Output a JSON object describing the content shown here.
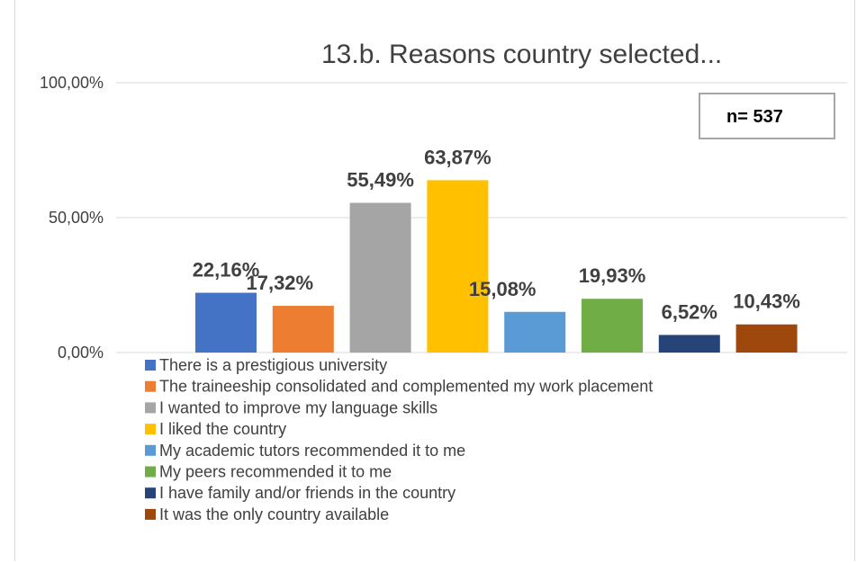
{
  "chart_data": {
    "type": "bar",
    "title": "13.b. Reasons country selected...",
    "annotation": "n= 537",
    "ylim": [
      0,
      100
    ],
    "yticks": [
      {
        "value": 0,
        "label": "0,00%"
      },
      {
        "value": 50,
        "label": "50,00%"
      },
      {
        "value": 100,
        "label": "100,00%"
      }
    ],
    "grid": true,
    "legend_position": "bottom",
    "categories": [
      "There is a prestigious university",
      "The traineeship consolidated and complemented my work placement",
      "I wanted to improve my language skills",
      "I liked the country",
      "My academic tutors recommended it to me",
      "My peers recommended it to me",
      "I have family and/or friends in the country",
      "It was the only country available"
    ],
    "values": [
      22.16,
      17.32,
      55.49,
      63.87,
      15.08,
      19.93,
      6.52,
      10.43
    ],
    "labels": [
      "22,16%",
      "17,32%",
      "55,49%",
      "63,87%",
      "15,08%",
      "19,93%",
      "6,52%",
      "10,43%"
    ],
    "colors": [
      "#4472c4",
      "#ed7d31",
      "#a5a5a5",
      "#ffc000",
      "#5b9bd5",
      "#70ad47",
      "#264478",
      "#9e480e"
    ]
  }
}
